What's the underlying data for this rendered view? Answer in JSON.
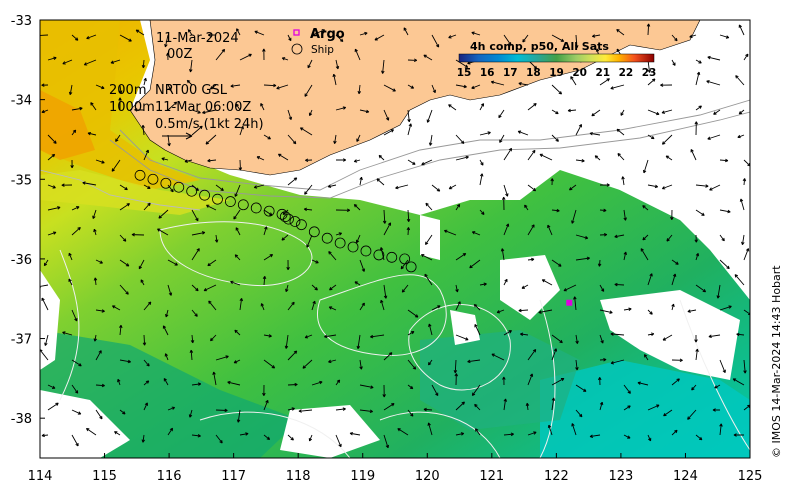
{
  "map": {
    "lon_ticks": [
      "114",
      "115",
      "116",
      "117",
      "118",
      "119",
      "120",
      "121",
      "122",
      "123",
      "124",
      "125"
    ],
    "lat_ticks": [
      "-33",
      "-34",
      "-35",
      "-36",
      "-37",
      "-38"
    ],
    "lon_range": [
      114,
      125
    ],
    "lat_range": [
      -38.5,
      -33
    ]
  },
  "header": {
    "date": "11-Mar-2024",
    "time": "00Z",
    "depth_200": "200m",
    "depth_1000": "1000m",
    "current_source": "NRT00 GSL",
    "current_time": "11-Mar 06:00Z",
    "velocity_scale": "0.5m/s (1kt 24h)"
  },
  "legend": {
    "argo_label": "Argo",
    "ship_label": "Ship"
  },
  "colorbar": {
    "title": "4h comp, p50, All Sats",
    "ticks": [
      "15",
      "16",
      "17",
      "18",
      "19",
      "20",
      "21",
      "22",
      "23"
    ],
    "colors": [
      "#00008b",
      "#0000ff",
      "#0080ff",
      "#00c0ff",
      "#00e0a0",
      "#40c040",
      "#80e000",
      "#c0f000",
      "#ffff00",
      "#ffc000",
      "#ff8000",
      "#ff4000",
      "#c00000",
      "#800000"
    ]
  },
  "credit": "© IMOS 14-Mar-2024 14:43 Hobart",
  "ship_track": [
    [
      115.55,
      -34.95
    ],
    [
      115.75,
      -35.0
    ],
    [
      115.95,
      -35.05
    ],
    [
      116.15,
      -35.1
    ],
    [
      116.35,
      -35.15
    ],
    [
      116.55,
      -35.2
    ],
    [
      116.75,
      -35.25
    ],
    [
      116.95,
      -35.28
    ],
    [
      117.15,
      -35.32
    ],
    [
      117.35,
      -35.36
    ],
    [
      117.55,
      -35.4
    ],
    [
      117.75,
      -35.44
    ],
    [
      117.8,
      -35.47
    ],
    [
      117.85,
      -35.5
    ],
    [
      117.95,
      -35.53
    ],
    [
      118.05,
      -35.57
    ],
    [
      118.25,
      -35.66
    ],
    [
      118.45,
      -35.74
    ],
    [
      118.65,
      -35.8
    ],
    [
      118.85,
      -35.85
    ],
    [
      119.05,
      -35.9
    ],
    [
      119.25,
      -35.95
    ],
    [
      119.45,
      -35.98
    ],
    [
      119.65,
      -36.0
    ],
    [
      119.75,
      -36.1
    ]
  ],
  "argo_floats": [
    [
      122.2,
      -36.55
    ]
  ]
}
